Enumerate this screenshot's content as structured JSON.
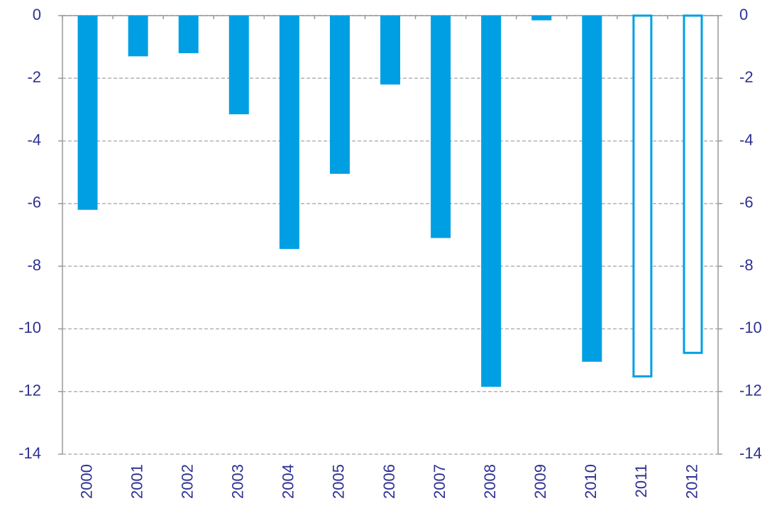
{
  "chart_data": {
    "type": "bar",
    "categories": [
      "2000",
      "2001",
      "2002",
      "2003",
      "2004",
      "2005",
      "2006",
      "2007",
      "2008",
      "2009",
      "2010",
      "2011",
      "2012"
    ],
    "values": [
      -6.2,
      -1.3,
      -1.2,
      -3.15,
      -7.45,
      -5.05,
      -2.2,
      -7.1,
      -11.85,
      -0.15,
      -11.05,
      -11.55,
      -10.8
    ],
    "styles": [
      "solid",
      "solid",
      "solid",
      "solid",
      "solid",
      "solid",
      "solid",
      "solid",
      "solid",
      "solid",
      "solid",
      "outline",
      "outline"
    ],
    "color": "#009fe3",
    "ylim": [
      -14,
      0
    ],
    "yticks": [
      0,
      -2,
      -4,
      -6,
      -8,
      -10,
      -12,
      -14
    ],
    "y2lim": [
      -14,
      0
    ],
    "y2ticks": [
      0,
      -2,
      -4,
      -6,
      -8,
      -10,
      -12,
      -14
    ],
    "grid": true
  }
}
